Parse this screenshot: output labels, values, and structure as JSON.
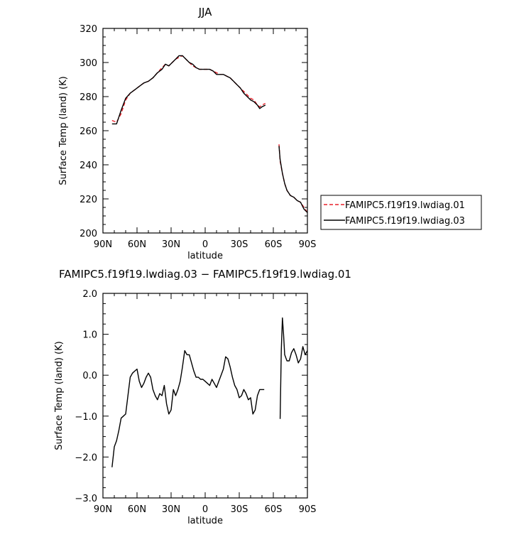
{
  "chart_data": [
    {
      "type": "line",
      "title": "JJA",
      "xlabel": "latitude",
      "ylabel": "Surface Temp (land) (K)",
      "xlim": [
        90,
        -90
      ],
      "ylim": [
        200,
        320
      ],
      "xticks": [
        {
          "v": 90,
          "label": "90N"
        },
        {
          "v": 60,
          "label": "60N"
        },
        {
          "v": 30,
          "label": "30N"
        },
        {
          "v": 0,
          "label": "0"
        },
        {
          "v": -30,
          "label": "30S"
        },
        {
          "v": -60,
          "label": "60S"
        },
        {
          "v": -90,
          "label": "90S"
        }
      ],
      "yticks": [
        {
          "v": 200,
          "label": "200"
        },
        {
          "v": 220,
          "label": "220"
        },
        {
          "v": 240,
          "label": "240"
        },
        {
          "v": 260,
          "label": "260"
        },
        {
          "v": 280,
          "label": "280"
        },
        {
          "v": 300,
          "label": "300"
        },
        {
          "v": 320,
          "label": "320"
        }
      ],
      "legend": "outside-right",
      "series": [
        {
          "name": "FAMIPC5.f19f19.lwdiag.01",
          "color": "#e8202a",
          "dash": "dashed",
          "segments": [
            [
              [
                82,
                266
              ],
              [
                78,
                265
              ],
              [
                74,
                270
              ],
              [
                70,
                278
              ],
              [
                66,
                282
              ],
              [
                62,
                284
              ],
              [
                58,
                286
              ],
              [
                54,
                288
              ],
              [
                50,
                289
              ],
              [
                46,
                291
              ],
              [
                42,
                294
              ],
              [
                38,
                297
              ],
              [
                35,
                299
              ],
              [
                32,
                298
              ],
              [
                29,
                300
              ],
              [
                26,
                302
              ],
              [
                23,
                303
              ],
              [
                20,
                304
              ],
              [
                17,
                302
              ],
              [
                14,
                300
              ],
              [
                11,
                298
              ],
              [
                8,
                297
              ],
              [
                5,
                296
              ],
              [
                2,
                296
              ],
              [
                -1,
                296
              ],
              [
                -4,
                296
              ],
              [
                -7,
                295
              ],
              [
                -10,
                294
              ],
              [
                -13,
                293
              ],
              [
                -16,
                293
              ],
              [
                -19,
                292
              ],
              [
                -22,
                291
              ],
              [
                -25,
                289
              ],
              [
                -28,
                287
              ],
              [
                -31,
                285
              ],
              [
                -34,
                283
              ],
              [
                -37,
                281
              ],
              [
                -40,
                279
              ],
              [
                -43,
                278
              ],
              [
                -46,
                275
              ],
              [
                -48,
                274
              ],
              [
                -50,
                275
              ],
              [
                -53,
                276
              ]
            ],
            [
              [
                -65,
                252
              ],
              [
                -66,
                242
              ],
              [
                -68,
                235
              ],
              [
                -70,
                229
              ],
              [
                -72,
                225
              ],
              [
                -75,
                222
              ],
              [
                -78,
                221
              ],
              [
                -81,
                219
              ],
              [
                -84,
                218
              ],
              [
                -87,
                215
              ],
              [
                -90,
                212
              ]
            ]
          ]
        },
        {
          "name": "FAMIPC5.f19f19.lwdiag.03",
          "color": "#000000",
          "dash": "solid",
          "segments": [
            [
              [
                82,
                264
              ],
              [
                78,
                264
              ],
              [
                76,
                268
              ],
              [
                74,
                272
              ],
              [
                70,
                279
              ],
              [
                66,
                282
              ],
              [
                62,
                284
              ],
              [
                58,
                286
              ],
              [
                54,
                288
              ],
              [
                50,
                289
              ],
              [
                46,
                291
              ],
              [
                42,
                294
              ],
              [
                38,
                296
              ],
              [
                35,
                299
              ],
              [
                32,
                298
              ],
              [
                29,
                300
              ],
              [
                26,
                302
              ],
              [
                23,
                304
              ],
              [
                20,
                304
              ],
              [
                17,
                302
              ],
              [
                14,
                300
              ],
              [
                11,
                299
              ],
              [
                8,
                297
              ],
              [
                5,
                296
              ],
              [
                2,
                296
              ],
              [
                -1,
                296
              ],
              [
                -4,
                296
              ],
              [
                -7,
                295
              ],
              [
                -10,
                293
              ],
              [
                -13,
                293
              ],
              [
                -16,
                293
              ],
              [
                -19,
                292
              ],
              [
                -22,
                291
              ],
              [
                -25,
                289
              ],
              [
                -28,
                287
              ],
              [
                -31,
                285
              ],
              [
                -34,
                282
              ],
              [
                -37,
                280
              ],
              [
                -40,
                278
              ],
              [
                -43,
                277
              ],
              [
                -46,
                275
              ],
              [
                -48,
                273
              ],
              [
                -50,
                274
              ],
              [
                -53,
                275
              ]
            ],
            [
              [
                -65,
                251
              ],
              [
                -66,
                243
              ],
              [
                -68,
                235
              ],
              [
                -70,
                229
              ],
              [
                -72,
                225
              ],
              [
                -75,
                222
              ],
              [
                -78,
                221
              ],
              [
                -81,
                219
              ],
              [
                -84,
                218
              ],
              [
                -87,
                214
              ],
              [
                -90,
                212
              ]
            ]
          ]
        }
      ]
    },
    {
      "type": "line",
      "title": "FAMIPC5.f19f19.lwdiag.03 − FAMIPC5.f19f19.lwdiag.01",
      "xlabel": "latitude",
      "ylabel": "Surface Temp (land) (K)",
      "xlim": [
        90,
        -90
      ],
      "ylim": [
        -3.0,
        2.0
      ],
      "xticks": [
        {
          "v": 90,
          "label": "90N"
        },
        {
          "v": 60,
          "label": "60N"
        },
        {
          "v": 30,
          "label": "30N"
        },
        {
          "v": 0,
          "label": "0"
        },
        {
          "v": -30,
          "label": "30S"
        },
        {
          "v": -60,
          "label": "60S"
        },
        {
          "v": -90,
          "label": "90S"
        }
      ],
      "yticks": [
        {
          "v": -3.0,
          "label": "−3.0"
        },
        {
          "v": -2.0,
          "label": "−2.0"
        },
        {
          "v": -1.0,
          "label": "−1.0"
        },
        {
          "v": 0.0,
          "label": "0.0"
        },
        {
          "v": 1.0,
          "label": "1.0"
        },
        {
          "v": 2.0,
          "label": "2.0"
        }
      ],
      "series": [
        {
          "color": "#000000",
          "dash": "solid",
          "segments": [
            [
              [
                82,
                -2.25
              ],
              [
                80,
                -1.75
              ],
              [
                78,
                -1.6
              ],
              [
                76,
                -1.35
              ],
              [
                74,
                -1.05
              ],
              [
                72,
                -1.0
              ],
              [
                70,
                -0.95
              ],
              [
                68,
                -0.5
              ],
              [
                66,
                -0.05
              ],
              [
                64,
                0.05
              ],
              [
                62,
                0.1
              ],
              [
                60,
                0.15
              ],
              [
                58,
                -0.15
              ],
              [
                56,
                -0.3
              ],
              [
                54,
                -0.2
              ],
              [
                52,
                -0.05
              ],
              [
                50,
                0.05
              ],
              [
                48,
                -0.05
              ],
              [
                46,
                -0.35
              ],
              [
                44,
                -0.5
              ],
              [
                42,
                -0.6
              ],
              [
                40,
                -0.45
              ],
              [
                38,
                -0.5
              ],
              [
                36,
                -0.25
              ],
              [
                34,
                -0.7
              ],
              [
                32,
                -0.95
              ],
              [
                30,
                -0.85
              ],
              [
                28,
                -0.35
              ],
              [
                26,
                -0.5
              ],
              [
                24,
                -0.35
              ],
              [
                22,
                -0.15
              ],
              [
                20,
                0.2
              ],
              [
                18,
                0.6
              ],
              [
                16,
                0.5
              ],
              [
                14,
                0.5
              ],
              [
                12,
                0.3
              ],
              [
                10,
                0.1
              ],
              [
                8,
                -0.05
              ],
              [
                6,
                -0.05
              ],
              [
                4,
                -0.1
              ],
              [
                2,
                -0.1
              ],
              [
                0,
                -0.15
              ],
              [
                -2,
                -0.2
              ],
              [
                -4,
                -0.25
              ],
              [
                -6,
                -0.1
              ],
              [
                -8,
                -0.2
              ],
              [
                -10,
                -0.3
              ],
              [
                -12,
                -0.15
              ],
              [
                -14,
                0.0
              ],
              [
                -16,
                0.15
              ],
              [
                -18,
                0.45
              ],
              [
                -20,
                0.4
              ],
              [
                -22,
                0.2
              ],
              [
                -24,
                -0.05
              ],
              [
                -26,
                -0.25
              ],
              [
                -28,
                -0.35
              ],
              [
                -30,
                -0.55
              ],
              [
                -32,
                -0.5
              ],
              [
                -34,
                -0.35
              ],
              [
                -36,
                -0.45
              ],
              [
                -38,
                -0.6
              ],
              [
                -40,
                -0.55
              ],
              [
                -42,
                -0.95
              ],
              [
                -44,
                -0.85
              ],
              [
                -46,
                -0.5
              ],
              [
                -48,
                -0.35
              ],
              [
                -50,
                -0.35
              ],
              [
                -52,
                -0.35
              ]
            ],
            [
              [
                -66,
                -1.07
              ],
              [
                -67,
                0.6
              ],
              [
                -68,
                1.4
              ],
              [
                -69,
                1.0
              ],
              [
                -70,
                0.5
              ],
              [
                -72,
                0.35
              ],
              [
                -74,
                0.35
              ],
              [
                -76,
                0.55
              ],
              [
                -78,
                0.65
              ],
              [
                -80,
                0.5
              ],
              [
                -82,
                0.3
              ],
              [
                -84,
                0.4
              ],
              [
                -86,
                0.7
              ],
              [
                -88,
                0.5
              ],
              [
                -90,
                0.6
              ]
            ]
          ]
        }
      ]
    }
  ]
}
